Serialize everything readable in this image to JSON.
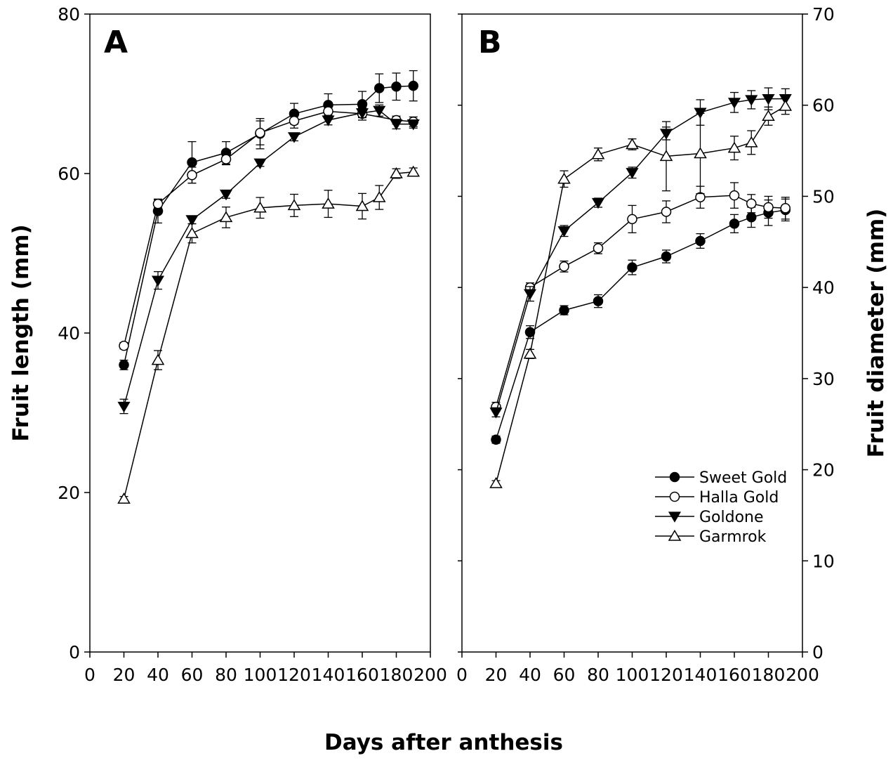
{
  "chart_data": [
    {
      "panel": "A",
      "type": "line",
      "xlabel": "Days after anthesis",
      "ylabel": "Fruit length (mm)",
      "xlim": [
        0,
        200
      ],
      "ylim": [
        0,
        80
      ],
      "x_ticks": [
        0,
        20,
        40,
        60,
        80,
        100,
        120,
        140,
        160,
        180,
        200
      ],
      "y_ticks": [
        0,
        20,
        40,
        60,
        80
      ],
      "y_axis_side": "left",
      "series": [
        {
          "name": "Sweet Gold",
          "marker": "filled-circle",
          "x": [
            20,
            40,
            60,
            80,
            100,
            120,
            140,
            160,
            170,
            180,
            190
          ],
          "y": [
            36.0,
            55.3,
            61.4,
            62.6,
            65.0,
            67.5,
            68.6,
            68.7,
            70.7,
            70.9,
            71.0
          ],
          "err": [
            0.6,
            1.5,
            2.6,
            1.4,
            1.9,
            1.3,
            1.4,
            1.6,
            1.8,
            1.7,
            1.9
          ]
        },
        {
          "name": "Halla Gold",
          "marker": "open-circle",
          "x": [
            20,
            40,
            60,
            80,
            100,
            120,
            140,
            160,
            180,
            190
          ],
          "y": [
            38.4,
            56.2,
            59.8,
            61.8,
            65.1,
            66.6,
            67.8,
            67.5,
            66.7,
            66.5
          ],
          "err": [
            0.4,
            0.5,
            1.0,
            0.7,
            1.5,
            0.9,
            0.8,
            0.8,
            0.5,
            0.6
          ]
        },
        {
          "name": "Goldone",
          "marker": "filled-triangle-down",
          "x": [
            20,
            40,
            60,
            80,
            100,
            120,
            140,
            160,
            170,
            180,
            190
          ],
          "y": [
            30.8,
            46.6,
            54.2,
            57.4,
            61.3,
            64.6,
            66.7,
            67.6,
            67.9,
            66.2,
            66.2
          ],
          "err": [
            0.9,
            1.1,
            0.5,
            0.5,
            0.4,
            0.5,
            0.6,
            0.6,
            0.7,
            0.6,
            0.5
          ]
        },
        {
          "name": "Garmrok",
          "marker": "open-triangle-up",
          "x": [
            20,
            40,
            60,
            80,
            100,
            120,
            140,
            160,
            170,
            180,
            190
          ],
          "y": [
            19.2,
            36.6,
            52.5,
            54.5,
            55.7,
            56.0,
            56.2,
            55.9,
            57.0,
            60.0,
            60.2
          ],
          "err": [
            0.3,
            1.2,
            1.2,
            1.3,
            1.3,
            1.4,
            1.7,
            1.6,
            1.5,
            0.6,
            0.5
          ]
        }
      ]
    },
    {
      "panel": "B",
      "type": "line",
      "xlabel": "Days after anthesis",
      "ylabel": "Fruit diameter (mm)",
      "xlim": [
        0,
        200
      ],
      "ylim": [
        0,
        70
      ],
      "x_ticks": [
        0,
        20,
        40,
        60,
        80,
        100,
        120,
        140,
        160,
        180,
        200
      ],
      "y_ticks": [
        0,
        10,
        20,
        30,
        40,
        50,
        60,
        70
      ],
      "y_axis_side": "right",
      "legend_position": "lower-right",
      "series": [
        {
          "name": "Sweet Gold",
          "marker": "filled-circle",
          "x": [
            20,
            40,
            60,
            80,
            100,
            120,
            140,
            160,
            170,
            180,
            190
          ],
          "y": [
            23.3,
            35.1,
            37.5,
            38.5,
            42.2,
            43.4,
            45.1,
            47.0,
            47.7,
            48.2,
            48.5
          ],
          "err": [
            0.4,
            0.7,
            0.5,
            0.7,
            0.8,
            0.7,
            0.8,
            1.0,
            1.1,
            1.4,
            1.2
          ]
        },
        {
          "name": "Halla Gold",
          "marker": "open-circle",
          "x": [
            20,
            40,
            60,
            80,
            100,
            120,
            140,
            160,
            170,
            180,
            190
          ],
          "y": [
            26.9,
            40.0,
            42.3,
            44.3,
            47.5,
            48.3,
            49.9,
            50.1,
            49.2,
            48.8,
            48.7
          ],
          "err": [
            0.5,
            0.5,
            0.6,
            0.6,
            1.5,
            1.2,
            1.2,
            1.4,
            1.0,
            1.2,
            1.2
          ]
        },
        {
          "name": "Goldone",
          "marker": "filled-triangle-down",
          "x": [
            20,
            40,
            60,
            80,
            100,
            120,
            140,
            160,
            170,
            180,
            190
          ],
          "y": [
            26.3,
            39.3,
            46.2,
            49.3,
            52.6,
            56.9,
            59.2,
            60.3,
            60.6,
            60.7,
            60.7
          ],
          "err": [
            0.5,
            0.8,
            0.6,
            0.5,
            0.6,
            0.7,
            1.4,
            1.1,
            1.0,
            1.2,
            1.1
          ]
        },
        {
          "name": "Garmrok",
          "marker": "open-triangle-up",
          "x": [
            20,
            40,
            60,
            80,
            100,
            120,
            140,
            160,
            170,
            180,
            190
          ],
          "y": [
            18.5,
            32.7,
            51.9,
            54.6,
            55.7,
            54.4,
            54.7,
            55.3,
            55.9,
            58.8,
            59.9
          ],
          "err": [
            0.3,
            0.5,
            0.9,
            0.7,
            0.6,
            3.8,
            4.4,
            1.3,
            1.3,
            1.0,
            0.9
          ]
        }
      ]
    }
  ]
}
